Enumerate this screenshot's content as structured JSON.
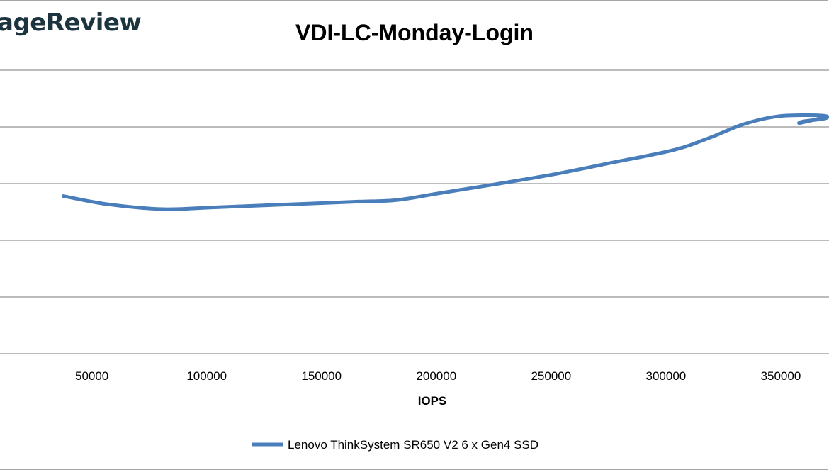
{
  "logo_text": "ageReview",
  "chart_data": {
    "type": "line",
    "title": "VDI-LC-Monday-Login",
    "xlabel": "IOPS",
    "ylabel": "",
    "x_ticks": [
      "50000",
      "100000",
      "150000",
      "200000",
      "250000",
      "300000",
      "350000"
    ],
    "xlim": [
      10000,
      371000
    ],
    "ylim": [
      0,
      5
    ],
    "y_note": "y-axis tick labels not visible; values in gridline intervals",
    "grid": true,
    "legend_position": "bottom",
    "series_color": "#4a7ebb",
    "series": [
      {
        "name": "Lenovo ThinkSystem SR650 V2 6 x Gen4 SSD",
        "x": [
          37600,
          56200,
          80900,
          102500,
          133300,
          164200,
          182700,
          201200,
          225900,
          250600,
          275300,
          303100,
          318500,
          334000,
          349400,
          367900,
          369400,
          360200,
          358600,
          369400
        ],
        "y": [
          2.78,
          2.64,
          2.55,
          2.58,
          2.63,
          2.68,
          2.71,
          2.83,
          2.99,
          3.16,
          3.36,
          3.59,
          3.8,
          4.05,
          4.19,
          4.2,
          4.15,
          4.1,
          4.07,
          4.17
        ]
      }
    ]
  }
}
